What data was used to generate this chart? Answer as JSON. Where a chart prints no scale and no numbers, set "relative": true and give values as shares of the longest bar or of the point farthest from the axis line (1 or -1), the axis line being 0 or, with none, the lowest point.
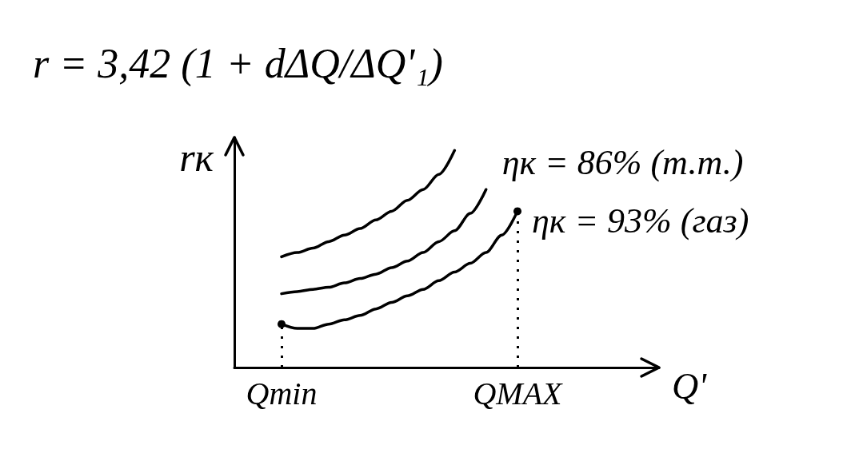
{
  "chart_data": {
    "type": "line",
    "title": "r = 3,42 (1 + dΔQ/ΔQ'₁)",
    "xlabel": "Q'",
    "ylabel": "rк",
    "relative": true,
    "marker": "none",
    "categories": [
      null,
      null,
      null,
      "Qmin",
      null,
      null,
      null,
      null,
      null,
      null,
      null,
      null,
      null,
      null,
      null,
      null,
      null,
      null,
      "QMAX",
      null,
      null,
      null,
      null,
      null,
      null,
      null,
      null,
      null
    ],
    "series": [
      {
        "color": "#000000",
        "values": [
          null,
          null,
          null,
          0.51,
          0.53,
          0.55,
          0.58,
          0.61,
          0.64,
          0.68,
          0.72,
          0.77,
          0.82,
          0.89,
          1,
          null,
          null,
          null,
          null,
          null,
          null,
          null,
          null,
          null,
          null,
          null,
          null,
          null
        ]
      },
      {
        "name": "ηк = 86% (т.т.)",
        "color": "#000000",
        "values": [
          null,
          null,
          null,
          0.34,
          0.35,
          0.36,
          0.37,
          0.39,
          0.41,
          0.43,
          0.46,
          0.49,
          0.53,
          0.58,
          0.63,
          0.71,
          0.82,
          null,
          null,
          null,
          null,
          null,
          null,
          null,
          null,
          null,
          null,
          null
        ]
      },
      {
        "name": "ηк = 93% (газ)",
        "color": "#000000",
        "values": [
          null,
          null,
          null,
          0.2,
          0.18,
          0.18,
          0.2,
          0.22,
          0.24,
          0.27,
          0.3,
          0.33,
          0.36,
          0.4,
          0.44,
          0.48,
          0.53,
          0.61,
          0.72,
          null,
          null,
          null,
          null,
          null,
          null,
          null,
          null,
          null
        ]
      }
    ],
    "ref_lines": [
      {
        "axis": "x",
        "value": "Qmin",
        "line_style": "dotted"
      },
      {
        "axis": "x",
        "value": "QMAX",
        "line_style": "dotted"
      }
    ]
  }
}
